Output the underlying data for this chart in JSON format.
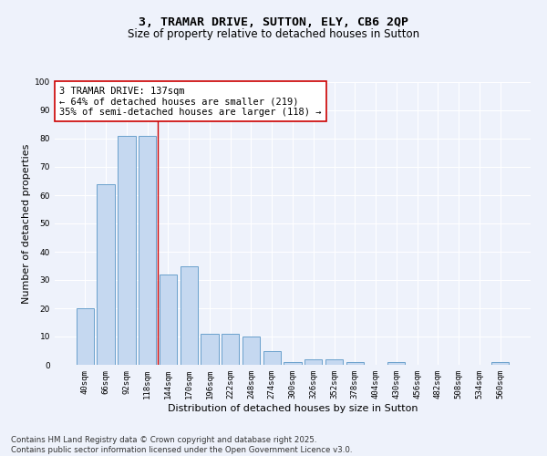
{
  "title_line1": "3, TRAMAR DRIVE, SUTTON, ELY, CB6 2QP",
  "title_line2": "Size of property relative to detached houses in Sutton",
  "xlabel": "Distribution of detached houses by size in Sutton",
  "ylabel": "Number of detached properties",
  "categories": [
    "40sqm",
    "66sqm",
    "92sqm",
    "118sqm",
    "144sqm",
    "170sqm",
    "196sqm",
    "222sqm",
    "248sqm",
    "274sqm",
    "300sqm",
    "326sqm",
    "352sqm",
    "378sqm",
    "404sqm",
    "430sqm",
    "456sqm",
    "482sqm",
    "508sqm",
    "534sqm",
    "560sqm"
  ],
  "values": [
    20,
    64,
    81,
    81,
    32,
    35,
    11,
    11,
    10,
    5,
    1,
    2,
    2,
    1,
    0,
    1,
    0,
    0,
    0,
    0,
    1
  ],
  "bar_color": "#c5d8f0",
  "bar_edge_color": "#6aa0cc",
  "vline_x": 3.5,
  "vline_color": "#cc0000",
  "annotation_text": "3 TRAMAR DRIVE: 137sqm\n← 64% of detached houses are smaller (219)\n35% of semi-detached houses are larger (118) →",
  "annotation_box_color": "#ffffff",
  "annotation_box_edge": "#cc0000",
  "ylim": [
    0,
    100
  ],
  "yticks": [
    0,
    10,
    20,
    30,
    40,
    50,
    60,
    70,
    80,
    90,
    100
  ],
  "background_color": "#eef2fb",
  "grid_color": "#ffffff",
  "footnote": "Contains HM Land Registry data © Crown copyright and database right 2025.\nContains public sector information licensed under the Open Government Licence v3.0.",
  "title_fontsize": 9.5,
  "subtitle_fontsize": 8.5,
  "axis_label_fontsize": 8,
  "tick_fontsize": 6.5,
  "annotation_fontsize": 7.5,
  "footnote_fontsize": 6.2
}
